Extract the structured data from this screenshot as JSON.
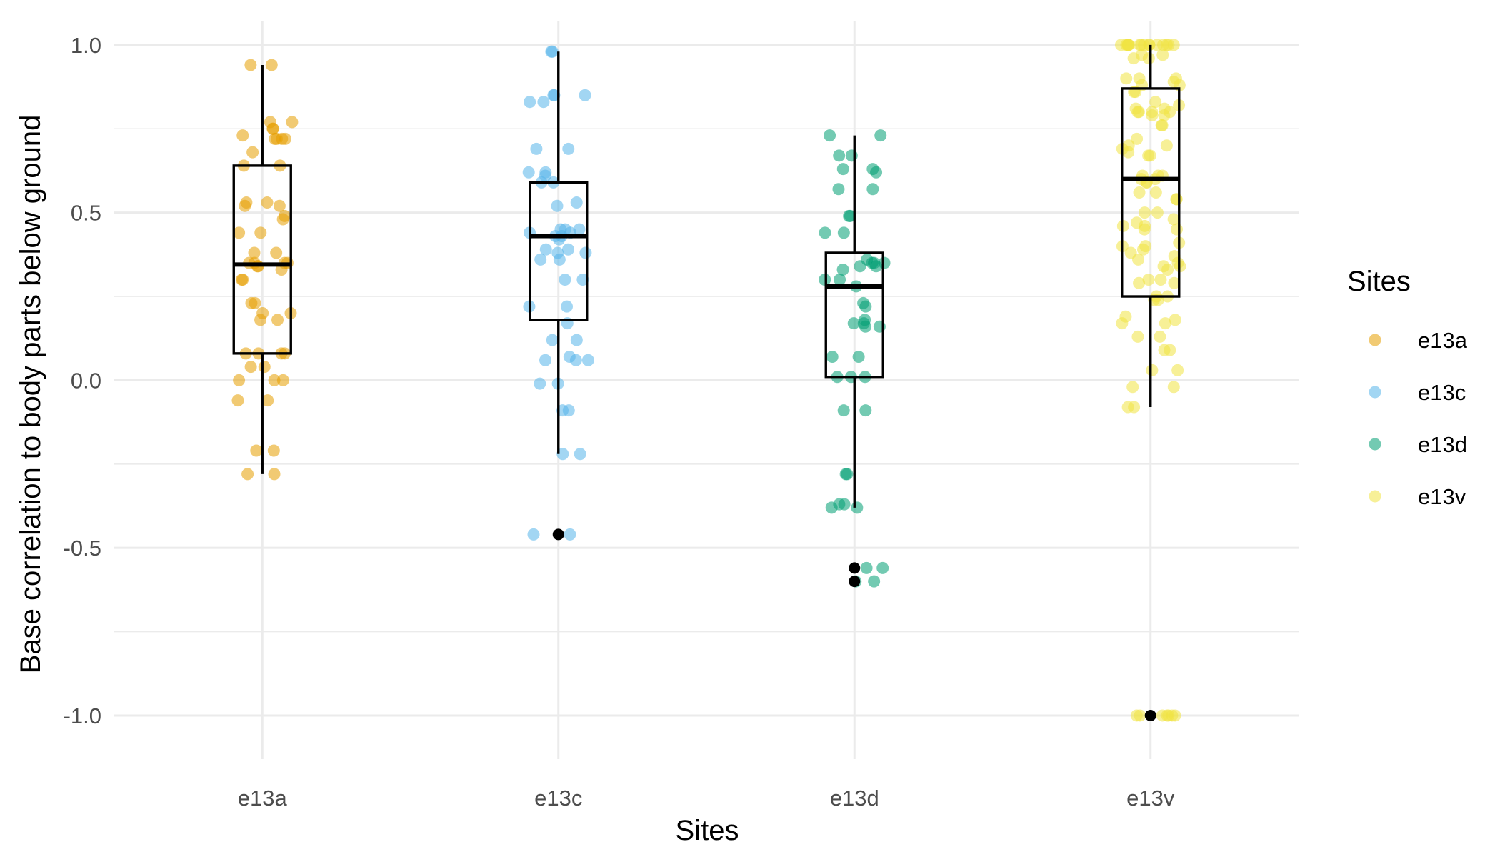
{
  "chart_data": {
    "type": "boxplot",
    "title": "",
    "xlabel": "Sites",
    "ylabel": "Base correlation to body parts below ground",
    "categories": [
      "e13a",
      "e13c",
      "e13d",
      "e13v"
    ],
    "ylim": [
      -1.13,
      1.07
    ],
    "yticks": [
      -1.0,
      -0.5,
      0.0,
      0.5,
      1.0
    ],
    "ytick_labels": [
      "-1.0",
      "-0.5",
      "0.0",
      "0.5",
      "1.0"
    ],
    "grid": true,
    "legend": {
      "title": "Sites",
      "placement": "right",
      "entries": [
        {
          "label": "e13a",
          "color": "#E69F00"
        },
        {
          "label": "e13c",
          "color": "#56B4E9"
        },
        {
          "label": "e13d",
          "color": "#009E73"
        },
        {
          "label": "e13v",
          "color": "#F0E442"
        }
      ]
    },
    "boxes": [
      {
        "category": "e13a",
        "whisker_low": -0.28,
        "q1": 0.08,
        "median": 0.345,
        "q3": 0.64,
        "whisker_high": 0.94,
        "outliers": []
      },
      {
        "category": "e13c",
        "whisker_low": -0.22,
        "q1": 0.18,
        "median": 0.43,
        "q3": 0.59,
        "whisker_high": 0.98,
        "outliers": [
          -0.46
        ]
      },
      {
        "category": "e13d",
        "whisker_low": -0.38,
        "q1": 0.01,
        "median": 0.28,
        "q3": 0.38,
        "whisker_high": 0.73,
        "outliers": [
          -0.56,
          -0.6
        ]
      },
      {
        "category": "e13v",
        "whisker_low": -0.08,
        "q1": 0.25,
        "median": 0.6,
        "q3": 0.87,
        "whisker_high": 1.0,
        "outliers": [
          -1.0
        ]
      }
    ],
    "points": {
      "e13a": [
        0.94,
        0.94,
        0.77,
        0.77,
        0.75,
        0.75,
        0.73,
        0.72,
        0.72,
        0.72,
        0.72,
        0.68,
        0.64,
        0.64,
        0.53,
        0.53,
        0.52,
        0.52,
        0.49,
        0.48,
        0.44,
        0.44,
        0.38,
        0.38,
        0.35,
        0.35,
        0.35,
        0.35,
        0.34,
        0.34,
        0.33,
        0.3,
        0.3,
        0.23,
        0.23,
        0.2,
        0.2,
        0.18,
        0.18,
        0.08,
        0.08,
        0.08,
        0.08,
        0.04,
        0.04,
        0.0,
        0.0,
        0.0,
        -0.06,
        -0.06,
        -0.21,
        -0.21,
        -0.28,
        -0.28
      ],
      "e13c": [
        0.98,
        0.98,
        0.85,
        0.85,
        0.85,
        0.83,
        0.83,
        0.69,
        0.69,
        0.62,
        0.62,
        0.61,
        0.59,
        0.59,
        0.53,
        0.52,
        0.45,
        0.45,
        0.45,
        0.44,
        0.44,
        0.43,
        0.43,
        0.42,
        0.39,
        0.39,
        0.38,
        0.38,
        0.36,
        0.36,
        0.3,
        0.3,
        0.22,
        0.22,
        0.17,
        0.12,
        0.12,
        0.07,
        0.06,
        0.06,
        0.06,
        -0.01,
        -0.01,
        -0.09,
        -0.09,
        -0.22,
        -0.22,
        -0.46,
        -0.46
      ],
      "e13d": [
        0.73,
        0.73,
        0.67,
        0.67,
        0.63,
        0.63,
        0.62,
        0.57,
        0.57,
        0.49,
        0.49,
        0.44,
        0.44,
        0.36,
        0.35,
        0.35,
        0.35,
        0.34,
        0.34,
        0.33,
        0.3,
        0.3,
        0.28,
        0.23,
        0.22,
        0.18,
        0.17,
        0.17,
        0.16,
        0.16,
        0.07,
        0.07,
        0.01,
        0.01,
        0.01,
        -0.09,
        -0.09,
        -0.28,
        -0.28,
        -0.37,
        -0.37,
        -0.38,
        -0.38,
        -0.56,
        -0.56,
        -0.6,
        -0.6
      ],
      "e13v": [
        1.0,
        1.0,
        1.0,
        1.0,
        1.0,
        1.0,
        1.0,
        1.0,
        1.0,
        1.0,
        1.0,
        1.0,
        1.0,
        1.0,
        1.0,
        1.0,
        0.97,
        0.97,
        0.96,
        0.96,
        0.9,
        0.9,
        0.9,
        0.89,
        0.88,
        0.88,
        0.86,
        0.86,
        0.83,
        0.82,
        0.81,
        0.81,
        0.8,
        0.8,
        0.8,
        0.8,
        0.79,
        0.79,
        0.76,
        0.76,
        0.72,
        0.7,
        0.7,
        0.69,
        0.68,
        0.67,
        0.67,
        0.61,
        0.61,
        0.61,
        0.6,
        0.6,
        0.59,
        0.59,
        0.56,
        0.56,
        0.54,
        0.54,
        0.5,
        0.5,
        0.48,
        0.47,
        0.46,
        0.46,
        0.45,
        0.45,
        0.41,
        0.4,
        0.4,
        0.39,
        0.38,
        0.37,
        0.36,
        0.35,
        0.34,
        0.34,
        0.33,
        0.3,
        0.3,
        0.29,
        0.29,
        0.25,
        0.25,
        0.24,
        0.24,
        0.19,
        0.18,
        0.17,
        0.17,
        0.13,
        0.13,
        0.09,
        0.09,
        0.03,
        0.03,
        -0.02,
        -0.02,
        -0.08,
        -0.08,
        -1.0,
        -1.0,
        -1.0,
        -1.0,
        -1.0,
        -1.0,
        -1.0
      ]
    }
  }
}
